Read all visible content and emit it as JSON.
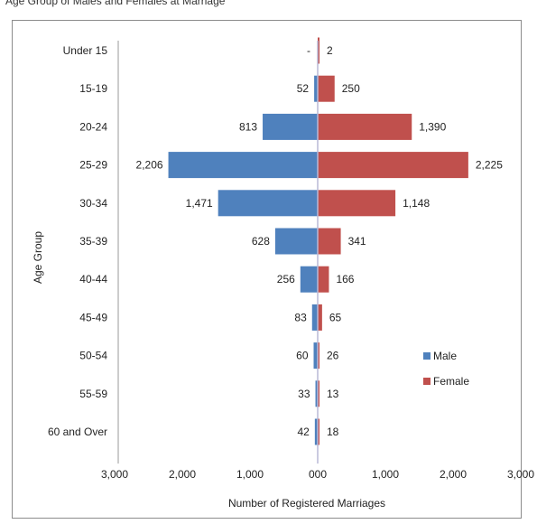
{
  "caption": "Age Group of Males and Females at Marriage",
  "chart_data": {
    "type": "bar",
    "orientation": "horizontal-butterfly",
    "categories": [
      "Under 15",
      "15-19",
      "20-24",
      "25-29",
      "30-34",
      "35-39",
      "40-44",
      "45-49",
      "50-54",
      "55-59",
      "60 and Over"
    ],
    "series": [
      {
        "name": "Male",
        "side": "left",
        "color": "#4f81bd",
        "values": [
          0,
          52,
          813,
          2206,
          1471,
          628,
          256,
          83,
          60,
          33,
          42
        ],
        "labels": [
          "-",
          "52",
          "813",
          "2,206",
          "1,471",
          "628",
          "256",
          "83",
          "60",
          "33",
          "42"
        ]
      },
      {
        "name": "Female",
        "side": "right",
        "color": "#c0504d",
        "values": [
          2,
          250,
          1390,
          2225,
          1148,
          341,
          166,
          65,
          26,
          13,
          18
        ],
        "labels": [
          "2",
          "250",
          "1,390",
          "2,225",
          "1,148",
          "341",
          "166",
          "65",
          "26",
          "13",
          "18"
        ]
      }
    ],
    "xticks": [
      "3,000",
      "2,000",
      "1,000",
      "000",
      "1,000",
      "2,000",
      "3,000"
    ],
    "xlim": [
      -3000,
      3000
    ],
    "xlabel": "Number of Registered Marriages",
    "ylabel": "Age Group",
    "legend_position": "right-bottom",
    "grid": false
  }
}
